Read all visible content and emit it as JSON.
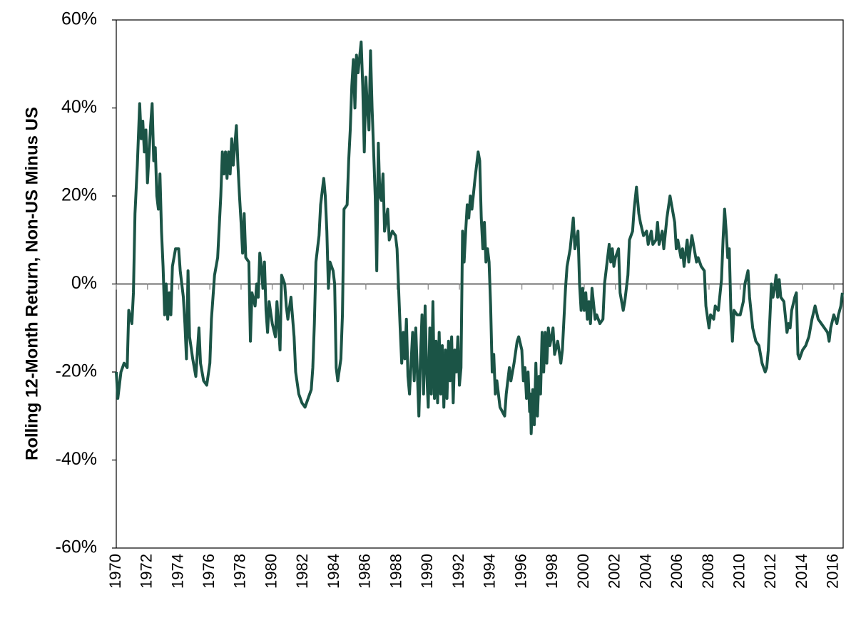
{
  "chart_data": {
    "type": "line",
    "y_label": "Rolling 12-Month Return, Non-US Minus US",
    "color": "#1b5446",
    "xlim": [
      1970,
      2016.6
    ],
    "xticks": [
      1970,
      1972,
      1974,
      1976,
      1978,
      1980,
      1982,
      1984,
      1986,
      1988,
      1990,
      1992,
      1994,
      1996,
      1998,
      2000,
      2002,
      2004,
      2006,
      2008,
      2010,
      2012,
      2014,
      2016
    ],
    "ylim": [
      -60,
      60
    ],
    "yticks": [
      {
        "value": -60,
        "label": "-60%"
      },
      {
        "value": -40,
        "label": "-40%"
      },
      {
        "value": -20,
        "label": "-20%"
      },
      {
        "value": 0,
        "label": "0%"
      },
      {
        "value": 20,
        "label": "20%"
      },
      {
        "value": 40,
        "label": "40%"
      },
      {
        "value": 60,
        "label": "60%"
      }
    ],
    "x": [
      1970.0,
      1970.1,
      1970.3,
      1970.5,
      1970.7,
      1970.8,
      1971.0,
      1971.1,
      1971.2,
      1971.35,
      1971.5,
      1971.6,
      1971.7,
      1971.8,
      1971.9,
      1972.0,
      1972.2,
      1972.3,
      1972.4,
      1972.5,
      1972.6,
      1972.7,
      1972.8,
      1972.9,
      1973.0,
      1973.1,
      1973.2,
      1973.3,
      1973.4,
      1973.5,
      1973.6,
      1973.8,
      1974.0,
      1974.1,
      1974.3,
      1974.4,
      1974.5,
      1974.6,
      1974.7,
      1974.9,
      1975.1,
      1975.3,
      1975.4,
      1975.6,
      1975.8,
      1976.0,
      1976.1,
      1976.3,
      1976.5,
      1976.7,
      1976.8,
      1976.9,
      1977.0,
      1977.1,
      1977.2,
      1977.3,
      1977.4,
      1977.5,
      1977.7,
      1977.8,
      1977.9,
      1978.0,
      1978.1,
      1978.2,
      1978.3,
      1978.5,
      1978.6,
      1978.7,
      1978.9,
      1979.0,
      1979.1,
      1979.2,
      1979.3,
      1979.4,
      1979.5,
      1979.6,
      1979.7,
      1979.8,
      1980.0,
      1980.2,
      1980.3,
      1980.5,
      1980.6,
      1980.8,
      1980.9,
      1981.0,
      1981.2,
      1981.4,
      1981.5,
      1981.7,
      1981.9,
      1982.1,
      1982.3,
      1982.5,
      1982.6,
      1982.7,
      1982.8,
      1983.0,
      1983.1,
      1983.3,
      1983.4,
      1983.5,
      1983.6,
      1983.7,
      1983.9,
      1984.0,
      1984.1,
      1984.2,
      1984.4,
      1984.5,
      1984.6,
      1984.8,
      1984.9,
      1985.0,
      1985.1,
      1985.2,
      1985.3,
      1985.4,
      1985.5,
      1985.7,
      1985.8,
      1985.9,
      1986.0,
      1986.1,
      1986.2,
      1986.3,
      1986.4,
      1986.6,
      1986.7,
      1986.8,
      1986.9,
      1987.0,
      1987.1,
      1987.2,
      1987.4,
      1987.5,
      1987.7,
      1987.9,
      1988.0,
      1988.2,
      1988.3,
      1988.4,
      1988.5,
      1988.6,
      1988.7,
      1988.8,
      1988.9,
      1989.0,
      1989.1,
      1989.2,
      1989.4,
      1989.5,
      1989.6,
      1989.7,
      1989.8,
      1989.9,
      1990.0,
      1990.1,
      1990.2,
      1990.3,
      1990.4,
      1990.5,
      1990.6,
      1990.7,
      1990.8,
      1990.9,
      1991.0,
      1991.1,
      1991.2,
      1991.3,
      1991.4,
      1991.5,
      1991.6,
      1991.7,
      1991.8,
      1991.9,
      1992.0,
      1992.1,
      1992.2,
      1992.3,
      1992.4,
      1992.5,
      1992.6,
      1992.7,
      1992.8,
      1993.0,
      1993.2,
      1993.3,
      1993.4,
      1993.5,
      1993.6,
      1993.7,
      1993.8,
      1993.9,
      1994.0,
      1994.1,
      1994.2,
      1994.3,
      1994.4,
      1994.6,
      1994.9,
      1995.0,
      1995.2,
      1995.3,
      1995.5,
      1995.7,
      1995.8,
      1996.0,
      1996.1,
      1996.2,
      1996.3,
      1996.4,
      1996.5,
      1996.55,
      1996.6,
      1996.7,
      1996.8,
      1996.9,
      1997.0,
      1997.1,
      1997.2,
      1997.3,
      1997.4,
      1997.5,
      1997.6,
      1997.7,
      1997.8,
      1998.0,
      1998.1,
      1998.3,
      1998.5,
      1998.6,
      1998.8,
      1998.9,
      1999.1,
      1999.3,
      1999.4,
      1999.6,
      1999.7,
      1999.8,
      1999.9,
      2000.0,
      2000.1,
      2000.2,
      2000.3,
      2000.4,
      2000.5,
      2000.7,
      2000.8,
      2001.0,
      2001.2,
      2001.3,
      2001.6,
      2001.7,
      2001.8,
      2001.9,
      2002.0,
      2002.2,
      2002.3,
      2002.5,
      2002.6,
      2002.8,
      2002.9,
      2003.1,
      2003.2,
      2003.35,
      2003.5,
      2003.6,
      2003.8,
      2004.0,
      2004.1,
      2004.3,
      2004.4,
      2004.6,
      2004.7,
      2004.8,
      2005.0,
      2005.1,
      2005.3,
      2005.5,
      2005.6,
      2005.8,
      2005.9,
      2006.0,
      2006.2,
      2006.3,
      2006.4,
      2006.6,
      2006.7,
      2006.9,
      2007.0,
      2007.2,
      2007.3,
      2007.5,
      2007.7,
      2007.8,
      2008.0,
      2008.1,
      2008.3,
      2008.4,
      2008.6,
      2008.8,
      2008.9,
      2009.0,
      2009.1,
      2009.2,
      2009.3,
      2009.4,
      2009.5,
      2009.6,
      2009.8,
      2010.0,
      2010.2,
      2010.3,
      2010.5,
      2010.6,
      2010.8,
      2011.0,
      2011.2,
      2011.4,
      2011.6,
      2011.7,
      2011.8,
      2011.9,
      2012.0,
      2012.1,
      2012.2,
      2012.3,
      2012.4,
      2012.5,
      2012.6,
      2012.8,
      2013.0,
      2013.1,
      2013.2,
      2013.3,
      2013.5,
      2013.6,
      2013.7,
      2013.8,
      2014.0,
      2014.2,
      2014.4,
      2014.6,
      2014.8,
      2015.0,
      2015.2,
      2015.4,
      2015.6,
      2015.7,
      2015.8,
      2016.0,
      2016.2,
      2016.3,
      2016.45,
      2016.55
    ],
    "values": [
      -20,
      -26,
      -20,
      -18,
      -19,
      -6,
      -9,
      -2,
      16,
      27,
      41,
      33,
      37,
      30,
      35,
      23,
      36,
      41,
      28,
      31,
      20,
      17,
      25,
      12,
      4,
      -7,
      0,
      -8,
      -2,
      -7,
      4,
      8,
      8,
      3,
      -3,
      -9,
      -17,
      3,
      -12,
      -17,
      -21,
      -10,
      -18,
      -22,
      -23,
      -18,
      -8,
      2,
      6,
      20,
      30,
      25,
      30,
      24,
      30,
      25,
      33,
      27,
      36,
      27,
      20,
      14,
      7,
      16,
      6,
      5,
      -13,
      -2,
      -5,
      0,
      -3,
      7,
      4,
      -1,
      5,
      -6,
      -11,
      -4,
      -9,
      -12,
      -4,
      -15,
      2,
      0,
      -5,
      -8,
      -3,
      -12,
      -20,
      -25,
      -27,
      -28,
      -26,
      -24,
      -19,
      -9,
      5,
      11,
      18,
      24,
      20,
      12,
      -1,
      5,
      3,
      0,
      -19,
      -22,
      -17,
      -7,
      17,
      18,
      28,
      35,
      45,
      51,
      40,
      52,
      48,
      55,
      45,
      30,
      47,
      40,
      35,
      53,
      40,
      20,
      3,
      32,
      20,
      19,
      25,
      12,
      17,
      10,
      12,
      11,
      8,
      -10,
      -18,
      -11,
      -17,
      -8,
      -21,
      -25,
      -18,
      -11,
      -22,
      -10,
      -30,
      -17,
      -7,
      -25,
      -5,
      -20,
      -28,
      -10,
      -25,
      -4,
      -26,
      -13,
      -27,
      -11,
      -25,
      -14,
      -28,
      -15,
      -26,
      -13,
      -22,
      -12,
      -27,
      -15,
      -20,
      -12,
      -23,
      -19,
      12,
      5,
      12,
      18,
      15,
      20,
      17,
      24,
      30,
      28,
      15,
      8,
      14,
      5,
      8,
      5,
      -5,
      -20,
      -16,
      -25,
      -22,
      -28,
      -30,
      -25,
      -19,
      -22,
      -18,
      -13,
      -12,
      -15,
      -22,
      -19,
      -26,
      -20,
      -29,
      -25,
      -34,
      -24,
      -32,
      -18,
      -30,
      -21,
      -25,
      -11,
      -20,
      -11,
      -18,
      -10,
      -14,
      -10,
      -16,
      -13,
      -18,
      -15,
      -1,
      4,
      8,
      15,
      8,
      12,
      0,
      -6,
      -1,
      -6,
      -2,
      -8,
      -4,
      -9,
      -1,
      -8,
      -7,
      -9,
      -8,
      0,
      9,
      5,
      8,
      4,
      6,
      8,
      -2,
      -6,
      -4,
      2,
      10,
      12,
      17,
      22,
      16,
      14,
      11,
      12,
      9,
      12,
      9,
      10,
      14,
      9,
      12,
      8,
      15,
      20,
      18,
      14,
      8,
      10,
      6,
      8,
      4,
      10,
      5,
      11,
      9,
      5,
      6,
      4,
      3,
      -5,
      -10,
      -7,
      -8,
      -5,
      -6,
      1,
      10,
      17,
      12,
      6,
      8,
      -6,
      -13,
      -6,
      -7,
      -7,
      -4,
      0,
      3,
      -3,
      -10,
      -13,
      -14,
      -18,
      -20,
      -19,
      -15,
      -8,
      0,
      -3,
      -1,
      2,
      -3,
      1,
      -3,
      -4,
      -11,
      -9,
      -10,
      -6,
      -3,
      -2,
      -16,
      -17,
      -15,
      -14,
      -12,
      -8,
      -5,
      -8,
      -9,
      -10,
      -11,
      -13,
      -10,
      -7,
      -9,
      -7,
      -5,
      -2
    ]
  }
}
